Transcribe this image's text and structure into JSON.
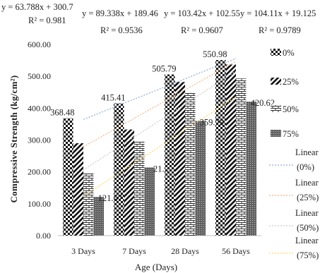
{
  "chart_data": {
    "type": "bar",
    "xlabel": "Age (Days)",
    "ylabel": "Compressive Strength (kg/cm²)",
    "ylim": [
      0,
      600
    ],
    "yticks": [
      "0.00",
      "100.00",
      "200.00",
      "300.00",
      "400.00",
      "500.00",
      "600.00"
    ],
    "grid": false,
    "legend_position": "right",
    "categories": [
      "3 Days",
      "7 Days",
      "28 Days",
      "56 Days"
    ],
    "series": [
      {
        "name": "0%",
        "values": [
          368.48,
          415.41,
          505.79,
          550.98
        ],
        "labels": [
          "368.48",
          "415.41",
          "505.79",
          "550.98"
        ],
        "pattern": "checker"
      },
      {
        "name": "25%",
        "values": [
          290,
          333,
          482,
          537
        ],
        "labels": [
          "",
          "",
          "",
          ""
        ],
        "pattern": "diagonal"
      },
      {
        "name": "50%",
        "values": [
          195,
          295,
          448,
          493
        ],
        "labels": [
          "",
          "",
          "",
          ""
        ],
        "pattern": "brick"
      },
      {
        "name": "75%",
        "values": [
          121.67,
          214,
          359.79,
          420.62
        ],
        "labels": [
          "121.67",
          "21...",
          "359.79",
          "420.62"
        ],
        "pattern": "dots"
      }
    ],
    "trendlines": [
      {
        "name": "Linear (0%)",
        "slope": 63.788,
        "intercept": 300.7,
        "r2": 0.981,
        "color": "#8faadc",
        "equation": "y = 63.788x + 300.7",
        "r2_label": "R² = 0.981"
      },
      {
        "name": "Linear (25%)",
        "slope": 89.338,
        "intercept": 189.46,
        "r2": 0.9536,
        "color": "#f4b183",
        "equation": "y = 89.338x + 189.46",
        "r2_label": "R² = 0.9536"
      },
      {
        "name": "Linear (50%)",
        "slope": 103.42,
        "intercept": 102.55,
        "r2": 0.9607,
        "color": "#c9c9c9",
        "equation": "y = 103.42x + 102.55",
        "r2_label": "R² = 0.9607"
      },
      {
        "name": "Linear (75%)",
        "slope": 104.11,
        "intercept": 19.125,
        "r2": 0.9789,
        "color": "#ffd966",
        "equation": "y = 104.11x + 19.125",
        "r2_label": "R² = 0.9789"
      }
    ]
  }
}
